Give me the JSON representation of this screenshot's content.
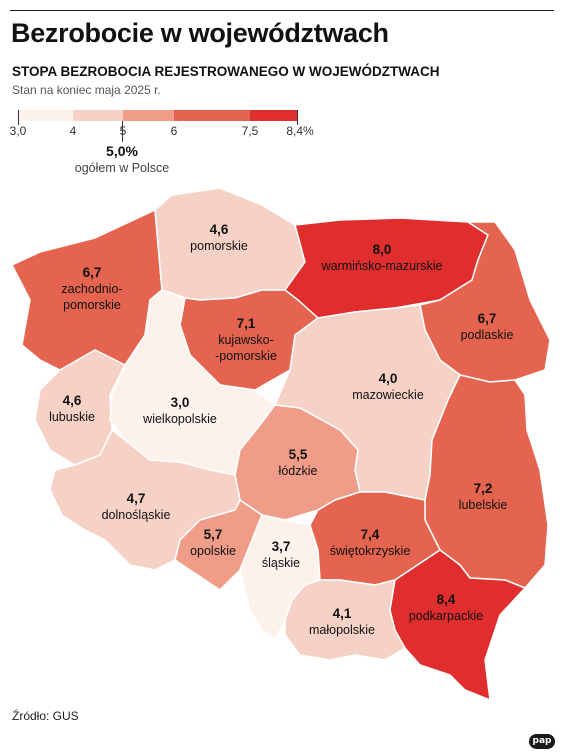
{
  "title": "Bezrobocie w województwach",
  "subtitle": "STOPA BEZROBOCIA REJESTROWANEGO W WOJEWÓDZTWACH",
  "caption": "Stan na koniec maja 2025 r.",
  "legend": {
    "ticks": [
      "3,0",
      "4",
      "5",
      "6",
      "7,5",
      "8,4%"
    ],
    "colors": [
      "#fdf1ec",
      "#f6d1c5",
      "#ef9d89",
      "#e4644f",
      "#e02e2e"
    ]
  },
  "national": {
    "value": "5,0%",
    "label": "ogółem w Polsce"
  },
  "regions": [
    {
      "id": "zachodniopomorskie",
      "value": "6,7",
      "name": "zachodnio-\npomorskie",
      "color": "#e4644f"
    },
    {
      "id": "pomorskie",
      "value": "4,6",
      "name": "pomorskie",
      "color": "#f6d1c5"
    },
    {
      "id": "warminsko-mazurskie",
      "value": "8,0",
      "name": "warmińsko-mazurskie",
      "color": "#e02e2e"
    },
    {
      "id": "podlaskie",
      "value": "6,7",
      "name": "podlaskie",
      "color": "#e4644f"
    },
    {
      "id": "kujawsko-pomorskie",
      "value": "7,1",
      "name": "kujawsko-\n-pomorskie",
      "color": "#e4644f"
    },
    {
      "id": "lubuskie",
      "value": "4,6",
      "name": "lubuskie",
      "color": "#f6d1c5"
    },
    {
      "id": "wielkopolskie",
      "value": "3,0",
      "name": "wielkopolskie",
      "color": "#fdf1ec"
    },
    {
      "id": "mazowieckie",
      "value": "4,0",
      "name": "mazowieckie",
      "color": "#f6d1c5"
    },
    {
      "id": "lodzkie",
      "value": "5,5",
      "name": "łódzkie",
      "color": "#ef9d89"
    },
    {
      "id": "lubelskie",
      "value": "7,2",
      "name": "lubelskie",
      "color": "#e4644f"
    },
    {
      "id": "dolnoslaskie",
      "value": "4,7",
      "name": "dolnośląskie",
      "color": "#f6d1c5"
    },
    {
      "id": "opolskie",
      "value": "5,7",
      "name": "opolskie",
      "color": "#ef9d89"
    },
    {
      "id": "slaskie",
      "value": "3,7",
      "name": "śląskie",
      "color": "#fdf1ec"
    },
    {
      "id": "swietokrzyskie",
      "value": "7,4",
      "name": "świętokrzyskie",
      "color": "#e4644f"
    },
    {
      "id": "malopolskie",
      "value": "4,1",
      "name": "małopolskie",
      "color": "#f6d1c5"
    },
    {
      "id": "podkarpackie",
      "value": "8,4",
      "name": "podkarpackie",
      "color": "#e02e2e"
    }
  ],
  "source": "Źródło: GUS",
  "logo": "pap"
}
